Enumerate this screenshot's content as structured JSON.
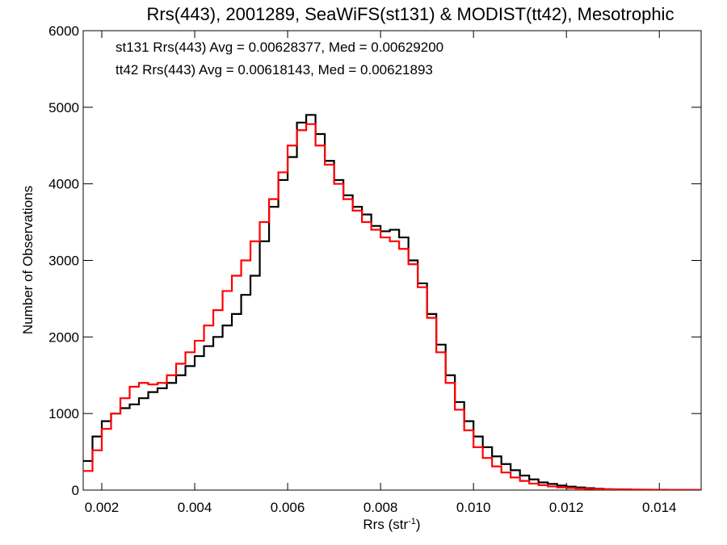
{
  "chart_data": {
    "type": "line",
    "title": "Rrs(443), 2001289, SeaWiFS(st131) & MODIST(tt42), Mesotrophic",
    "xlabel": "Rrs (str",
    "xlabel_sup": "-1",
    "xlabel_close": ")",
    "ylabel": "Number of Observations",
    "xlim": [
      0.0016,
      0.0149
    ],
    "ylim": [
      0,
      6000
    ],
    "x_ticks": [
      0.002,
      0.004,
      0.006,
      0.008,
      0.01,
      0.012,
      0.014
    ],
    "x_tick_labels": [
      "0.002",
      "0.004",
      "0.006",
      "0.008",
      "0.010",
      "0.012",
      "0.014"
    ],
    "y_ticks": [
      0,
      1000,
      2000,
      3000,
      4000,
      5000,
      6000
    ],
    "y_tick_labels": [
      "0",
      "1000",
      "2000",
      "3000",
      "4000",
      "5000",
      "6000"
    ],
    "grid": false,
    "legend_position": "top-left",
    "series": [
      {
        "name": "st131",
        "legend": "st131 Rrs(443) Avg = 0.00628377, Med = 0.00629200",
        "color": "#000000",
        "x": [
          0.0016,
          0.0018,
          0.002,
          0.0022,
          0.0024,
          0.0026,
          0.0028,
          0.003,
          0.0032,
          0.0034,
          0.0036,
          0.0038,
          0.004,
          0.0042,
          0.0044,
          0.0046,
          0.0048,
          0.005,
          0.0052,
          0.0054,
          0.0056,
          0.0058,
          0.006,
          0.0062,
          0.0064,
          0.0066,
          0.0068,
          0.007,
          0.0072,
          0.0074,
          0.0076,
          0.0078,
          0.008,
          0.0082,
          0.0084,
          0.0086,
          0.0088,
          0.009,
          0.0092,
          0.0094,
          0.0096,
          0.0098,
          0.01,
          0.0102,
          0.0104,
          0.0106,
          0.0108,
          0.011,
          0.0112,
          0.0114,
          0.0116,
          0.0118,
          0.012,
          0.0122,
          0.0124,
          0.0126,
          0.0128,
          0.013,
          0.0132,
          0.0134,
          0.0136,
          0.0138,
          0.014,
          0.0142,
          0.0144,
          0.0146,
          0.0148
        ],
        "y": [
          380,
          700,
          900,
          1000,
          1070,
          1120,
          1200,
          1280,
          1330,
          1400,
          1500,
          1620,
          1750,
          1880,
          2000,
          2150,
          2300,
          2550,
          2800,
          3250,
          3700,
          4050,
          4350,
          4800,
          4900,
          4650,
          4300,
          4050,
          3850,
          3700,
          3600,
          3450,
          3380,
          3400,
          3300,
          3000,
          2700,
          2300,
          1900,
          1500,
          1150,
          900,
          700,
          560,
          440,
          340,
          260,
          190,
          140,
          100,
          80,
          60,
          45,
          35,
          25,
          18,
          12,
          10,
          8,
          6,
          5,
          4,
          3,
          2,
          2,
          1,
          1
        ]
      },
      {
        "name": "tt42",
        "legend": "tt42 Rrs(443) Avg = 0.00618143, Med = 0.00621893",
        "color": "#ff0000",
        "x": [
          0.0016,
          0.0018,
          0.002,
          0.0022,
          0.0024,
          0.0026,
          0.0028,
          0.003,
          0.0032,
          0.0034,
          0.0036,
          0.0038,
          0.004,
          0.0042,
          0.0044,
          0.0046,
          0.0048,
          0.005,
          0.0052,
          0.0054,
          0.0056,
          0.0058,
          0.006,
          0.0062,
          0.0064,
          0.0066,
          0.0068,
          0.007,
          0.0072,
          0.0074,
          0.0076,
          0.0078,
          0.008,
          0.0082,
          0.0084,
          0.0086,
          0.0088,
          0.009,
          0.0092,
          0.0094,
          0.0096,
          0.0098,
          0.01,
          0.0102,
          0.0104,
          0.0106,
          0.0108,
          0.011,
          0.0112,
          0.0114,
          0.0116,
          0.0118,
          0.012,
          0.0122,
          0.0124,
          0.0126,
          0.0128,
          0.013,
          0.0132,
          0.0134,
          0.0136,
          0.0138,
          0.014,
          0.0142,
          0.0144,
          0.0146,
          0.0148
        ],
        "y": [
          250,
          520,
          800,
          1000,
          1200,
          1350,
          1400,
          1380,
          1400,
          1500,
          1650,
          1800,
          1950,
          2150,
          2350,
          2600,
          2800,
          3000,
          3250,
          3500,
          3800,
          4150,
          4500,
          4700,
          4780,
          4500,
          4250,
          4000,
          3800,
          3650,
          3500,
          3400,
          3300,
          3250,
          3150,
          2950,
          2650,
          2250,
          1800,
          1400,
          1050,
          780,
          560,
          420,
          310,
          230,
          165,
          120,
          85,
          65,
          48,
          36,
          28,
          21,
          15,
          12,
          9,
          7,
          6,
          5,
          4,
          3,
          2,
          2,
          1,
          1,
          1
        ]
      }
    ]
  }
}
